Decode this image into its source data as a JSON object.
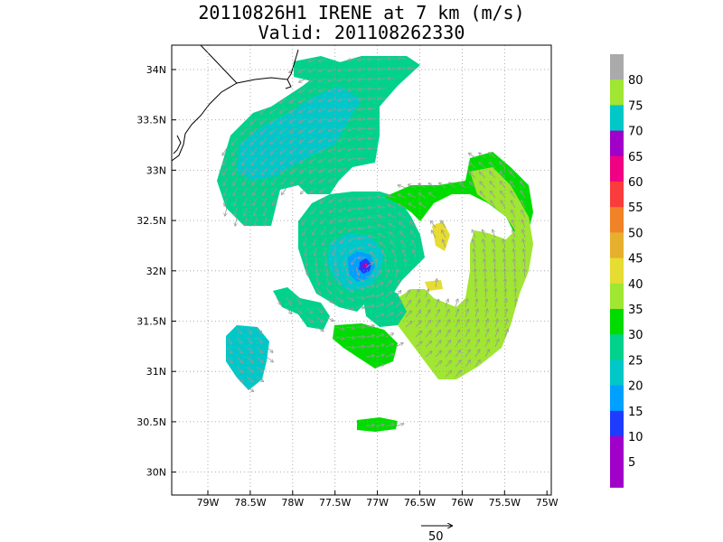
{
  "header": {
    "line1": "20110826H1 IRENE at 7 km (m/s)",
    "line2": "Valid: 201108262330"
  },
  "map": {
    "lon_labels": [
      "79W",
      "78.5W",
      "78W",
      "77.5W",
      "77W",
      "76.5W",
      "76W",
      "75.5W",
      "75W"
    ],
    "lat_labels": [
      "34N",
      "33.5N",
      "33N",
      "32.5N",
      "32N",
      "31.5N",
      "31N",
      "30.5N",
      "30N"
    ],
    "grid": "dotted"
  },
  "colorbar": {
    "labels": [
      "80",
      "75",
      "70",
      "65",
      "60",
      "55",
      "50",
      "45",
      "40",
      "35",
      "30",
      "25",
      "20",
      "15",
      "10",
      "5"
    ],
    "colors": [
      "#aaaaaa",
      "#a0e632",
      "#00c8c8",
      "#a000c8",
      "#f00082",
      "#fa3c3c",
      "#f08228",
      "#e6af2d",
      "#e6dc32",
      "#a0e632",
      "#00dc00",
      "#00d28c",
      "#00c8c8",
      "#00a0ff",
      "#1e3cff",
      "#a000c8",
      "#a000c8"
    ]
  },
  "reference_vector": {
    "label": "50"
  },
  "storm": {
    "name": "IRENE",
    "altitude": "7 km",
    "units": "m/s",
    "center_lon": -77.1,
    "center_lat": 32.05
  }
}
